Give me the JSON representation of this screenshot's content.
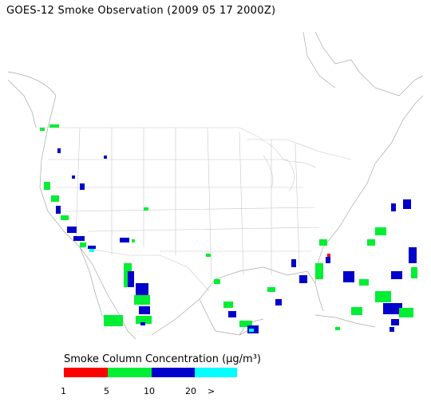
{
  "title": "GOES-12 Smoke Observation (2009 05 17  2000Z)",
  "legend": {
    "title": "Smoke Column Concentration (µg/m³)",
    "bins": [
      {
        "color": "#ff0000"
      },
      {
        "color": "#00ee33"
      },
      {
        "color": "#0000cc"
      },
      {
        "color": "#00ffff"
      }
    ],
    "ticks": [
      "1",
      "5",
      "10",
      "20",
      ">"
    ]
  },
  "smoke_clusters": [
    {
      "color": "#00ee33"
    },
    {
      "color": "#0000cc"
    },
    {
      "color": "#00ffff"
    },
    {
      "color": "#ff0000"
    }
  ]
}
